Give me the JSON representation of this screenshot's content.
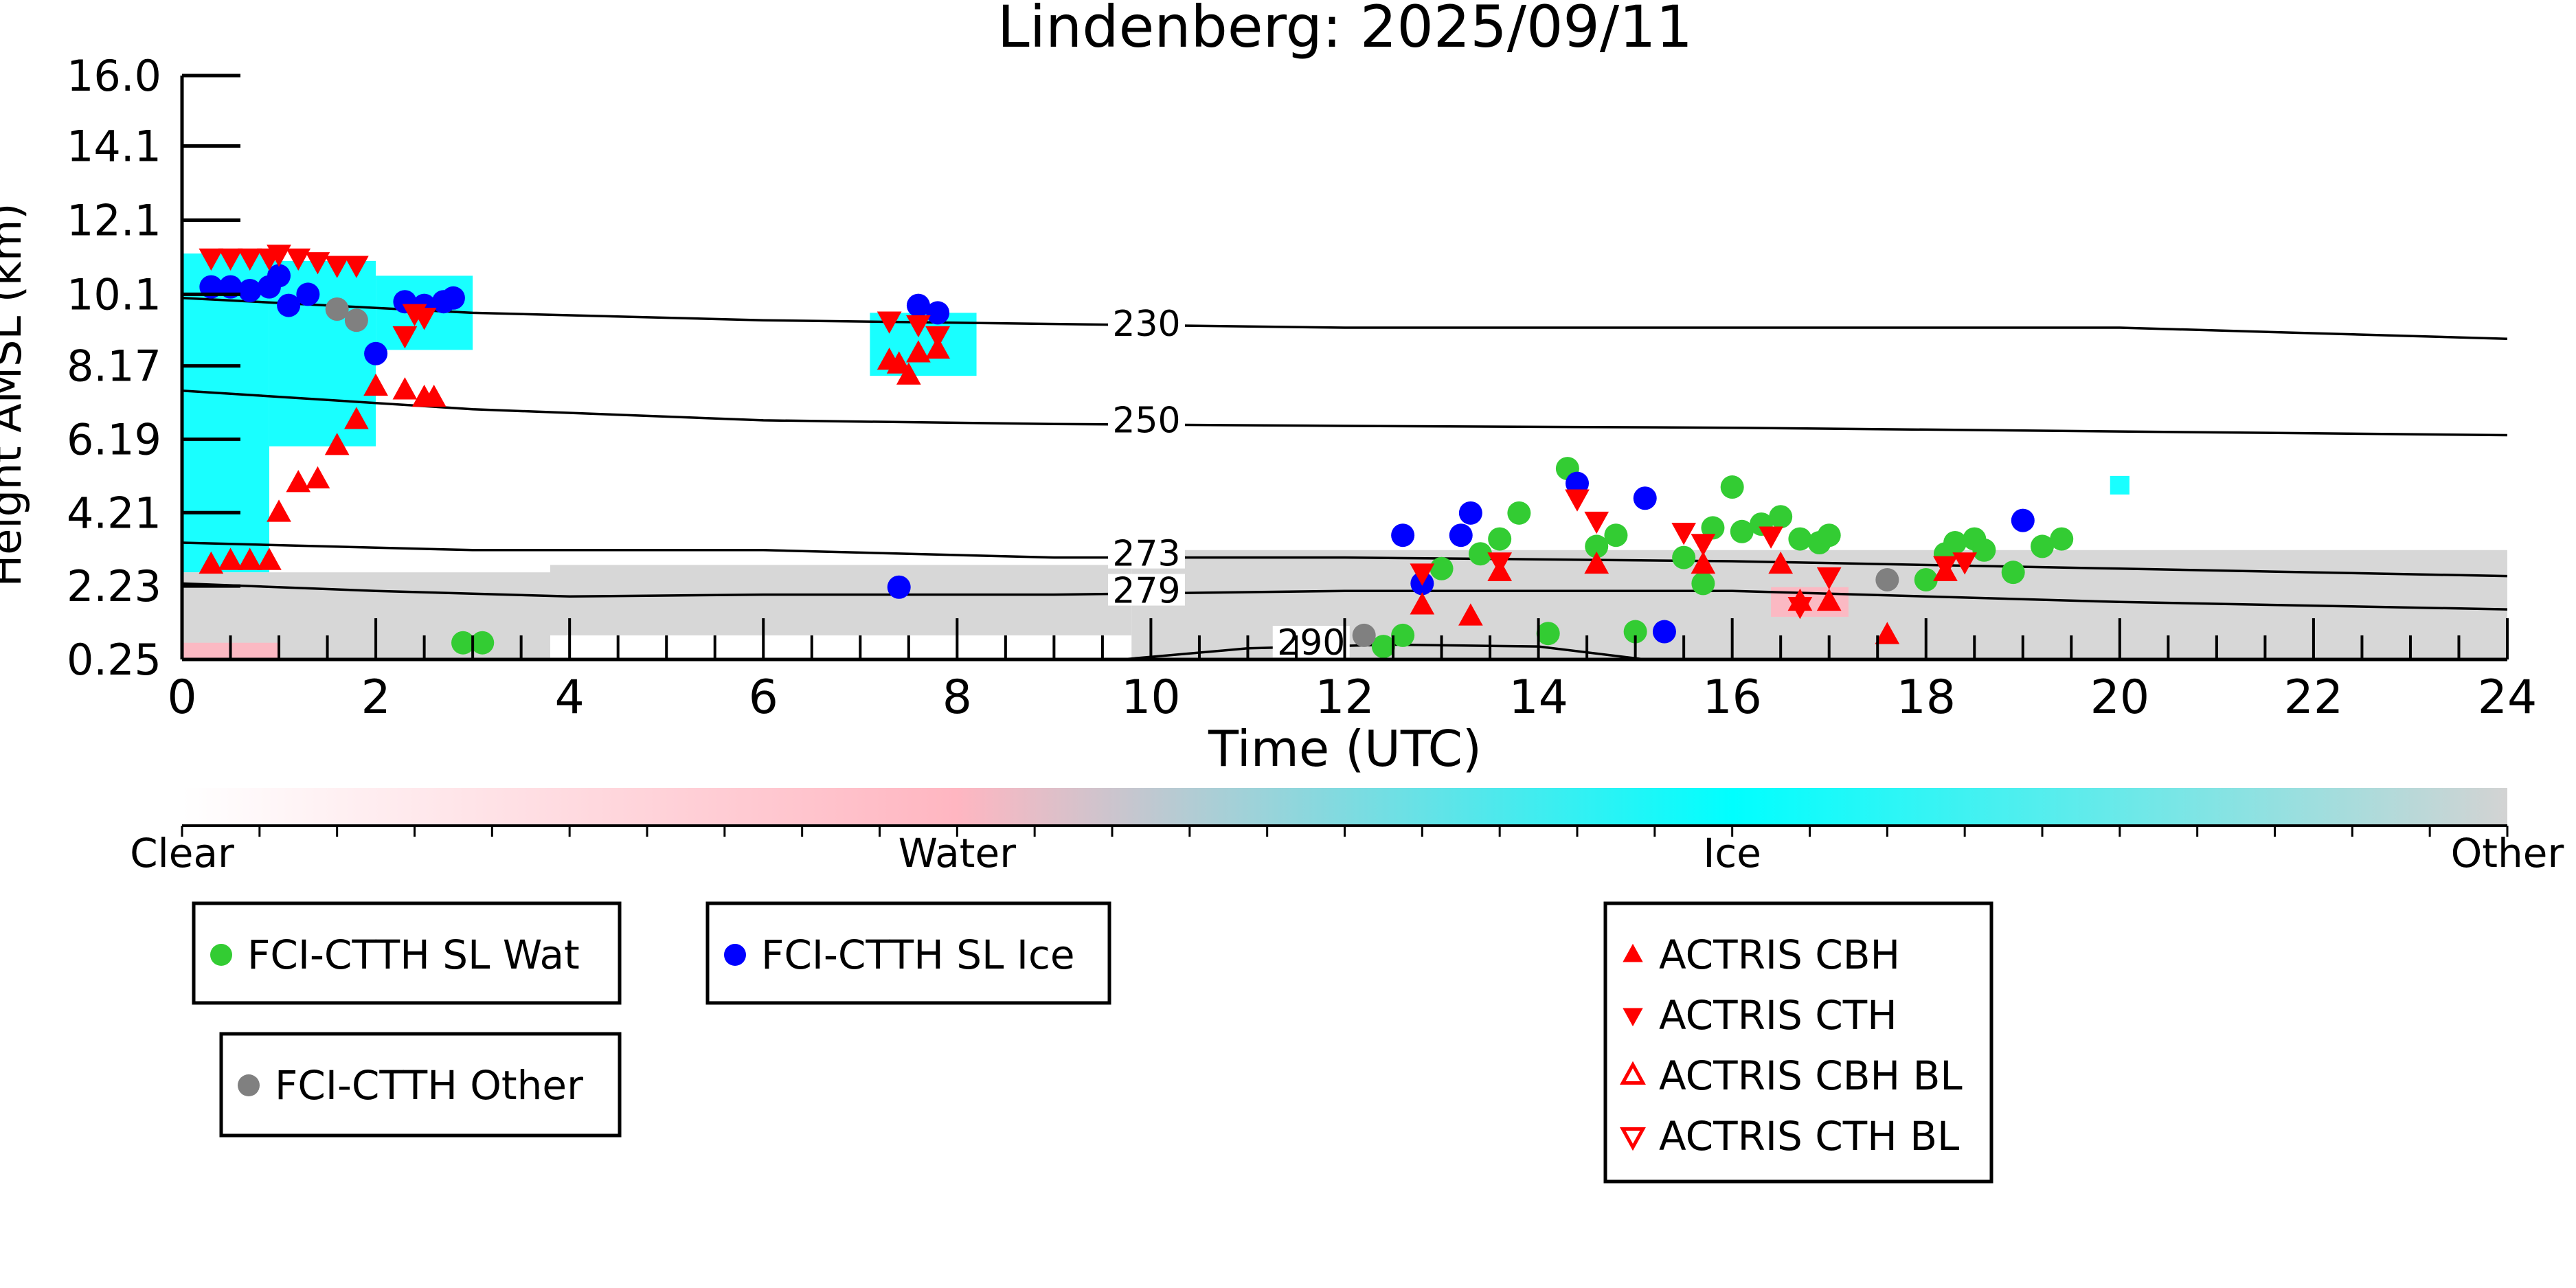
{
  "chart_data": {
    "type": "scatter",
    "title": "Lindenberg: 2025/09/11",
    "xlabel": "Time (UTC)",
    "ylabel": "Height AMSL (km)",
    "xlim": [
      0,
      24
    ],
    "ylim": [
      0.25,
      16.0
    ],
    "x_ticks": [
      "0",
      "2",
      "4",
      "6",
      "8",
      "10",
      "12",
      "14",
      "16",
      "18",
      "20",
      "22",
      "24"
    ],
    "y_ticks": [
      "0.25",
      "2.23",
      "4.21",
      "6.19",
      "8.17",
      "10.1",
      "12.1",
      "14.1",
      "16.0"
    ],
    "grid": false,
    "colorbar": {
      "labels": [
        "Clear",
        "Water",
        "Ice",
        "Other"
      ],
      "colors": [
        "#ffffff",
        "#ffb6c1",
        "#00ffff",
        "#d3d3d3"
      ]
    },
    "cloud_mask": [
      {
        "class": "Ice",
        "color": "#00ffff",
        "x_range": [
          0.0,
          0.9
        ],
        "y_range": [
          2.6,
          11.2
        ]
      },
      {
        "class": "Ice",
        "color": "#00ffff",
        "x_range": [
          0.9,
          2.0
        ],
        "y_range": [
          6.0,
          11.0
        ]
      },
      {
        "class": "Ice",
        "color": "#00ffff",
        "x_range": [
          2.0,
          3.0
        ],
        "y_range": [
          8.6,
          10.6
        ]
      },
      {
        "class": "Ice",
        "color": "#00ffff",
        "x_range": [
          7.1,
          8.2
        ],
        "y_range": [
          7.9,
          9.6
        ]
      },
      {
        "class": "Ice",
        "color": "#00ffff",
        "x_range": [
          19.9,
          20.1
        ],
        "y_range": [
          4.7,
          5.2
        ]
      },
      {
        "class": "Other",
        "color": "#d3d3d3",
        "x_range": [
          0.0,
          3.8
        ],
        "y_range": [
          0.25,
          2.6
        ]
      },
      {
        "class": "Other",
        "color": "#d3d3d3",
        "x_range": [
          3.8,
          9.8
        ],
        "y_range": [
          0.9,
          2.8
        ]
      },
      {
        "class": "Other",
        "color": "#d3d3d3",
        "x_range": [
          9.8,
          24.0
        ],
        "y_range": [
          0.25,
          3.2
        ]
      },
      {
        "class": "Water",
        "color": "#ffb6c1",
        "x_range": [
          0.0,
          1.0
        ],
        "y_range": [
          0.25,
          0.7
        ]
      },
      {
        "class": "Water",
        "color": "#ffb6c1",
        "x_range": [
          16.4,
          17.2
        ],
        "y_range": [
          1.4,
          2.2
        ]
      }
    ],
    "contours": [
      {
        "label": "230",
        "label_at": [
          9.6,
          9.2
        ],
        "points": [
          [
            0,
            10.0
          ],
          [
            3,
            9.6
          ],
          [
            6,
            9.4
          ],
          [
            9,
            9.3
          ],
          [
            12,
            9.2
          ],
          [
            16,
            9.2
          ],
          [
            20,
            9.2
          ],
          [
            24,
            8.9
          ]
        ]
      },
      {
        "label": "250",
        "label_at": [
          9.6,
          6.6
        ],
        "points": [
          [
            0,
            7.5
          ],
          [
            3,
            7.0
          ],
          [
            6,
            6.7
          ],
          [
            9,
            6.6
          ],
          [
            12,
            6.55
          ],
          [
            16,
            6.5
          ],
          [
            20,
            6.4
          ],
          [
            24,
            6.3
          ]
        ]
      },
      {
        "label": "273",
        "label_at": [
          9.6,
          3.0
        ],
        "points": [
          [
            0,
            3.4
          ],
          [
            3,
            3.2
          ],
          [
            6,
            3.2
          ],
          [
            9,
            3.0
          ],
          [
            12,
            3.0
          ],
          [
            16,
            2.9
          ],
          [
            20,
            2.7
          ],
          [
            24,
            2.5
          ]
        ]
      },
      {
        "label": "279",
        "label_at": [
          9.6,
          2.0
        ],
        "points": [
          [
            0,
            2.3
          ],
          [
            2,
            2.1
          ],
          [
            4,
            1.95
          ],
          [
            6,
            2.0
          ],
          [
            9,
            2.0
          ],
          [
            12,
            2.1
          ],
          [
            16,
            2.1
          ],
          [
            20,
            1.8
          ],
          [
            24,
            1.6
          ]
        ]
      },
      {
        "label": "290",
        "label_at": [
          11.3,
          0.6
        ],
        "points": [
          [
            9.7,
            0.25
          ],
          [
            11,
            0.55
          ],
          [
            12.5,
            0.65
          ],
          [
            14,
            0.6
          ],
          [
            15.1,
            0.25
          ]
        ]
      }
    ],
    "series": [
      {
        "name": "FCI-CTTH SL Wat",
        "marker": "circle",
        "color": "#33cc33",
        "points": [
          [
            2.9,
            0.7
          ],
          [
            3.1,
            0.7
          ],
          [
            12.4,
            0.6
          ],
          [
            12.6,
            0.9
          ],
          [
            13.0,
            2.7
          ],
          [
            13.4,
            3.1
          ],
          [
            13.6,
            3.5
          ],
          [
            13.8,
            4.2
          ],
          [
            14.1,
            0.95
          ],
          [
            14.3,
            5.4
          ],
          [
            14.6,
            3.3
          ],
          [
            14.8,
            3.6
          ],
          [
            15.0,
            1.0
          ],
          [
            15.5,
            3.0
          ],
          [
            15.7,
            2.3
          ],
          [
            15.8,
            3.8
          ],
          [
            16.0,
            4.9
          ],
          [
            16.1,
            3.7
          ],
          [
            16.3,
            3.9
          ],
          [
            16.5,
            4.1
          ],
          [
            16.7,
            3.5
          ],
          [
            16.9,
            3.4
          ],
          [
            17.0,
            3.6
          ],
          [
            18.0,
            2.4
          ],
          [
            18.2,
            3.1
          ],
          [
            18.3,
            3.4
          ],
          [
            18.5,
            3.5
          ],
          [
            18.6,
            3.2
          ],
          [
            18.9,
            2.6
          ],
          [
            19.2,
            3.3
          ],
          [
            19.4,
            3.5
          ]
        ]
      },
      {
        "name": "FCI-CTTH SL Ice",
        "marker": "circle",
        "color": "#0000ff",
        "points": [
          [
            0.3,
            10.3
          ],
          [
            0.5,
            10.3
          ],
          [
            0.7,
            10.2
          ],
          [
            0.9,
            10.3
          ],
          [
            1.0,
            10.6
          ],
          [
            1.1,
            9.8
          ],
          [
            1.3,
            10.1
          ],
          [
            2.0,
            8.5
          ],
          [
            2.3,
            9.9
          ],
          [
            2.5,
            9.8
          ],
          [
            2.7,
            9.9
          ],
          [
            2.8,
            10.0
          ],
          [
            7.4,
            2.2
          ],
          [
            7.6,
            9.8
          ],
          [
            7.8,
            9.6
          ],
          [
            12.6,
            3.6
          ],
          [
            12.8,
            2.3
          ],
          [
            13.2,
            3.6
          ],
          [
            13.3,
            4.2
          ],
          [
            14.4,
            5.0
          ],
          [
            15.1,
            4.6
          ],
          [
            15.3,
            1.0
          ],
          [
            19.0,
            4.0
          ]
        ]
      },
      {
        "name": "FCI-CTTH Other",
        "marker": "circle",
        "color": "#808080",
        "points": [
          [
            1.6,
            9.7
          ],
          [
            1.8,
            9.4
          ],
          [
            12.2,
            0.9
          ],
          [
            17.6,
            2.4
          ]
        ]
      },
      {
        "name": "ACTRIS CBH",
        "marker": "triangle-up",
        "color": "#ff0000",
        "points": [
          [
            0.3,
            2.8
          ],
          [
            0.5,
            2.9
          ],
          [
            0.7,
            2.9
          ],
          [
            0.9,
            2.9
          ],
          [
            1.0,
            4.2
          ],
          [
            1.2,
            5.0
          ],
          [
            1.4,
            5.1
          ],
          [
            1.6,
            6.0
          ],
          [
            1.8,
            6.7
          ],
          [
            2.0,
            7.6
          ],
          [
            2.3,
            7.5
          ],
          [
            2.5,
            7.3
          ],
          [
            2.6,
            7.3
          ],
          [
            7.3,
            8.3
          ],
          [
            7.4,
            8.2
          ],
          [
            7.5,
            7.9
          ],
          [
            7.6,
            8.5
          ],
          [
            7.8,
            8.6
          ],
          [
            12.8,
            1.7
          ],
          [
            13.3,
            1.4
          ],
          [
            13.6,
            2.6
          ],
          [
            14.6,
            2.8
          ],
          [
            15.7,
            2.8
          ],
          [
            16.5,
            2.8
          ],
          [
            16.7,
            1.8
          ],
          [
            17.0,
            1.8
          ],
          [
            17.6,
            0.9
          ],
          [
            18.2,
            2.6
          ]
        ]
      },
      {
        "name": "ACTRIS CTH",
        "marker": "triangle-down",
        "color": "#ff0000",
        "points": [
          [
            0.3,
            11.1
          ],
          [
            0.5,
            11.1
          ],
          [
            0.7,
            11.1
          ],
          [
            0.9,
            11.1
          ],
          [
            1.0,
            11.2
          ],
          [
            1.2,
            11.1
          ],
          [
            1.4,
            11.0
          ],
          [
            1.6,
            10.9
          ],
          [
            1.8,
            10.9
          ],
          [
            2.3,
            9.0
          ],
          [
            2.4,
            9.6
          ],
          [
            2.5,
            9.5
          ],
          [
            7.3,
            9.4
          ],
          [
            7.6,
            9.3
          ],
          [
            7.8,
            9.0
          ],
          [
            12.8,
            2.6
          ],
          [
            13.6,
            2.9
          ],
          [
            14.4,
            4.6
          ],
          [
            14.6,
            4.0
          ],
          [
            15.5,
            3.7
          ],
          [
            15.7,
            3.4
          ],
          [
            16.4,
            3.6
          ],
          [
            16.7,
            1.7
          ],
          [
            17.0,
            2.5
          ],
          [
            18.2,
            2.8
          ],
          [
            18.4,
            2.9
          ]
        ]
      },
      {
        "name": "ACTRIS CBH BL",
        "marker": "triangle-up-open",
        "color": "#ff0000",
        "points": []
      },
      {
        "name": "ACTRIS CTH BL",
        "marker": "triangle-down-open",
        "color": "#ff0000",
        "points": []
      }
    ]
  }
}
